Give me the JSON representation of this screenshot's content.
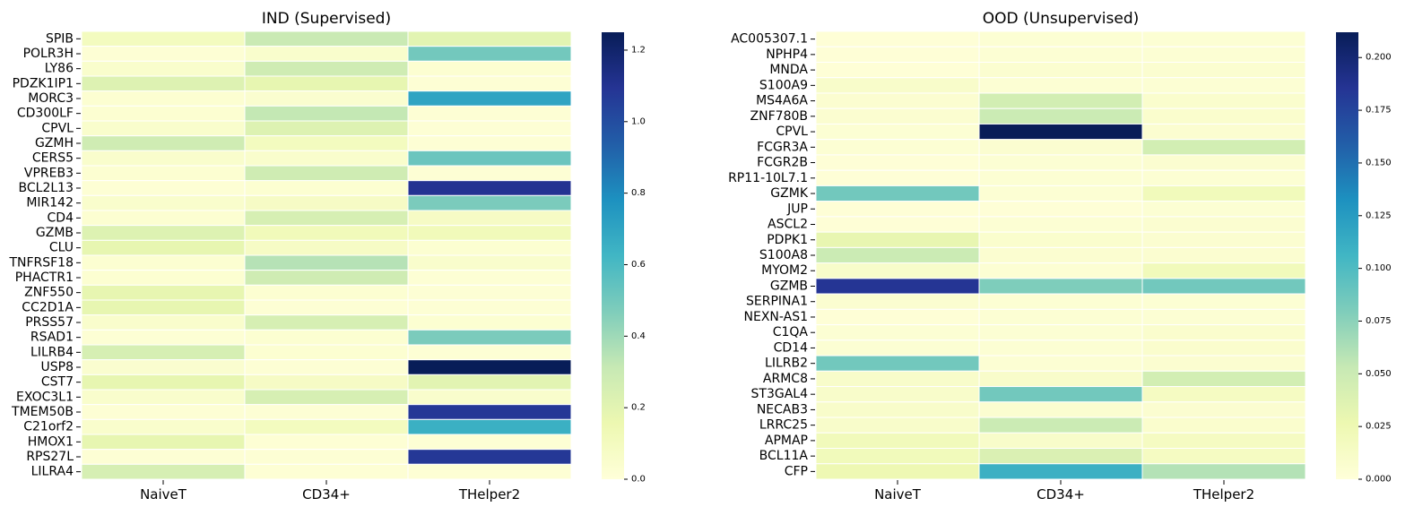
{
  "colormap": [
    "#ffffd9",
    "#edf8b1",
    "#c7e9b4",
    "#7fcdbb",
    "#41b6c4",
    "#1d91c0",
    "#225ea8",
    "#253494",
    "#081d58"
  ],
  "chart_data": [
    {
      "type": "heatmap",
      "title": "IND (Supervised)",
      "x_categories": [
        "NaiveT",
        "CD34+",
        "THelper2"
      ],
      "y_categories": [
        "SPIB",
        "POLR3H",
        "LY86",
        "PDZK1IP1",
        "MORC3",
        "CD300LF",
        "CPVL",
        "GZMH",
        "CERS5",
        "VPREB3",
        "BCL2L13",
        "MIR142",
        "CD4",
        "GZMB",
        "CLU",
        "TNFRSF18",
        "PHACTR1",
        "ZNF550",
        "CC2D1A",
        "PRSS57",
        "RSAD1",
        "LILRB4",
        "USP8",
        "CST7",
        "EXOC3L1",
        "TMEM50B",
        "C21orf2",
        "HMOX1",
        "RPS27L",
        "LILRA4"
      ],
      "values": [
        [
          0.1,
          0.3,
          0.2
        ],
        [
          0.02,
          0.05,
          0.5
        ],
        [
          0.05,
          0.28,
          0.03
        ],
        [
          0.22,
          0.18,
          0.02
        ],
        [
          0.03,
          0.04,
          0.7
        ],
        [
          0.03,
          0.32,
          0.02
        ],
        [
          0.05,
          0.22,
          0.02
        ],
        [
          0.28,
          0.1,
          0.02
        ],
        [
          0.05,
          0.05,
          0.52
        ],
        [
          0.03,
          0.28,
          0.02
        ],
        [
          0.02,
          0.03,
          1.1
        ],
        [
          0.05,
          0.08,
          0.48
        ],
        [
          0.03,
          0.25,
          0.08
        ],
        [
          0.22,
          0.12,
          0.12
        ],
        [
          0.18,
          0.08,
          0.03
        ],
        [
          0.03,
          0.35,
          0.05
        ],
        [
          0.03,
          0.28,
          0.02
        ],
        [
          0.18,
          0.03,
          0.02
        ],
        [
          0.18,
          0.02,
          0.02
        ],
        [
          0.05,
          0.25,
          0.03
        ],
        [
          0.02,
          0.03,
          0.48
        ],
        [
          0.25,
          0.03,
          0.02
        ],
        [
          0.04,
          0.02,
          1.25
        ],
        [
          0.18,
          0.08,
          0.2
        ],
        [
          0.05,
          0.25,
          0.05
        ],
        [
          0.02,
          0.02,
          1.08
        ],
        [
          0.05,
          0.1,
          0.65
        ],
        [
          0.18,
          0.02,
          0.02
        ],
        [
          0.02,
          0.02,
          1.08
        ],
        [
          0.25,
          0.02,
          0.02
        ]
      ],
      "vmin": 0.0,
      "vmax": 1.25,
      "colorbar_ticks": [
        0.0,
        0.2,
        0.4,
        0.6,
        0.8,
        1.0,
        1.2
      ],
      "colorbar_tick_labels": [
        "0.0",
        "0.2",
        "0.4",
        "0.6",
        "0.8",
        "1.0",
        "1.2"
      ],
      "xlabel": "",
      "ylabel": ""
    },
    {
      "type": "heatmap",
      "title": "OOD (Unsupervised)",
      "x_categories": [
        "NaiveT",
        "CD34+",
        "THelper2"
      ],
      "y_categories": [
        "AC005307.1",
        "NPHP4",
        "MNDA",
        "S100A9",
        "MS4A6A",
        "ZNF780B",
        "CPVL",
        "FCGR3A",
        "FCGR2B",
        "RP11-10L7.1",
        "GZMK",
        "JUP",
        "ASCL2",
        "PDPK1",
        "S100A8",
        "MYOM2",
        "GZMB",
        "SERPINA1",
        "NEXN-AS1",
        "C1QA",
        "CD14",
        "LILRB2",
        "ARMC8",
        "ST3GAL4",
        "NECAB3",
        "LRRC25",
        "APMAP",
        "BCL11A",
        "CFP"
      ],
      "values": [
        [
          0.002,
          0.004,
          0.004
        ],
        [
          0.002,
          0.004,
          0.004
        ],
        [
          0.002,
          0.006,
          0.006
        ],
        [
          0.01,
          0.004,
          0.004
        ],
        [
          0.006,
          0.045,
          0.008
        ],
        [
          0.006,
          0.05,
          0.008
        ],
        [
          0.004,
          0.212,
          0.006
        ],
        [
          0.004,
          0.006,
          0.045
        ],
        [
          0.002,
          0.004,
          0.006
        ],
        [
          0.002,
          0.004,
          0.004
        ],
        [
          0.085,
          0.004,
          0.02
        ],
        [
          0.002,
          0.002,
          0.004
        ],
        [
          0.002,
          0.004,
          0.006
        ],
        [
          0.03,
          0.008,
          0.006
        ],
        [
          0.05,
          0.006,
          0.006
        ],
        [
          0.01,
          0.004,
          0.02
        ],
        [
          0.185,
          0.08,
          0.085
        ],
        [
          0.006,
          0.004,
          0.004
        ],
        [
          0.002,
          0.004,
          0.004
        ],
        [
          0.004,
          0.004,
          0.008
        ],
        [
          0.004,
          0.004,
          0.008
        ],
        [
          0.085,
          0.004,
          0.006
        ],
        [
          0.01,
          0.01,
          0.045
        ],
        [
          0.01,
          0.085,
          0.015
        ],
        [
          0.01,
          0.006,
          0.006
        ],
        [
          0.01,
          0.05,
          0.008
        ],
        [
          0.02,
          0.01,
          0.015
        ],
        [
          0.02,
          0.04,
          0.015
        ],
        [
          0.025,
          0.11,
          0.06
        ]
      ],
      "vmin": 0.0,
      "vmax": 0.212,
      "colorbar_ticks": [
        0.0,
        0.025,
        0.05,
        0.075,
        0.1,
        0.125,
        0.15,
        0.175,
        0.2
      ],
      "colorbar_tick_labels": [
        "0.000",
        "0.025",
        "0.050",
        "0.075",
        "0.100",
        "0.125",
        "0.150",
        "0.175",
        "0.200"
      ],
      "xlabel": "",
      "ylabel": ""
    }
  ]
}
